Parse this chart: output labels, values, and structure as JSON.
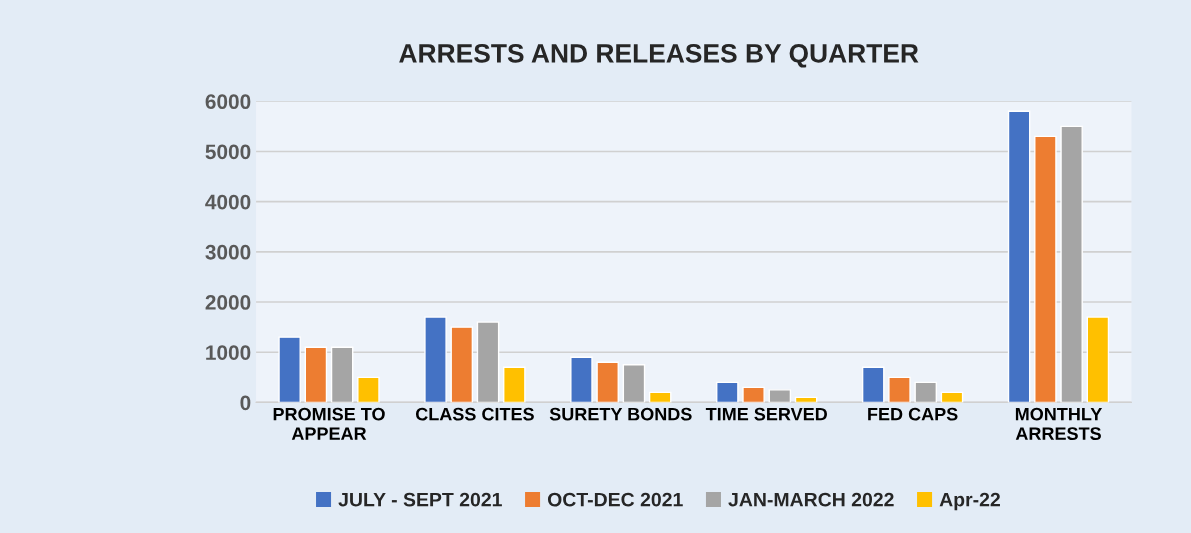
{
  "chart_data": {
    "type": "bar",
    "title": "ARRESTS AND RELEASES BY QUARTER",
    "categories": [
      "PROMISE TO\nAPPEAR",
      "CLASS CITES",
      "SURETY BONDS",
      "TIME SERVED",
      "FED CAPS",
      "MONTHLY\nARRESTS"
    ],
    "series": [
      {
        "name": "JULY - SEPT 2021",
        "color": "#4472c4",
        "values": [
          1300,
          1700,
          900,
          400,
          700,
          5800
        ]
      },
      {
        "name": "OCT-DEC 2021",
        "color": "#ed7d31",
        "values": [
          1100,
          1500,
          800,
          300,
          500,
          5300
        ]
      },
      {
        "name": "JAN-MARCH 2022",
        "color": "#a5a5a5",
        "values": [
          1100,
          1600,
          750,
          250,
          400,
          5500
        ]
      },
      {
        "name": "Apr-22",
        "color": "#ffc000",
        "values": [
          500,
          700,
          200,
          100,
          200,
          1700
        ]
      }
    ],
    "ylim": [
      0,
      6000
    ],
    "yticks": [
      0,
      1000,
      2000,
      3000,
      4000,
      5000,
      6000
    ],
    "grid": "y",
    "legend": "bottom"
  }
}
